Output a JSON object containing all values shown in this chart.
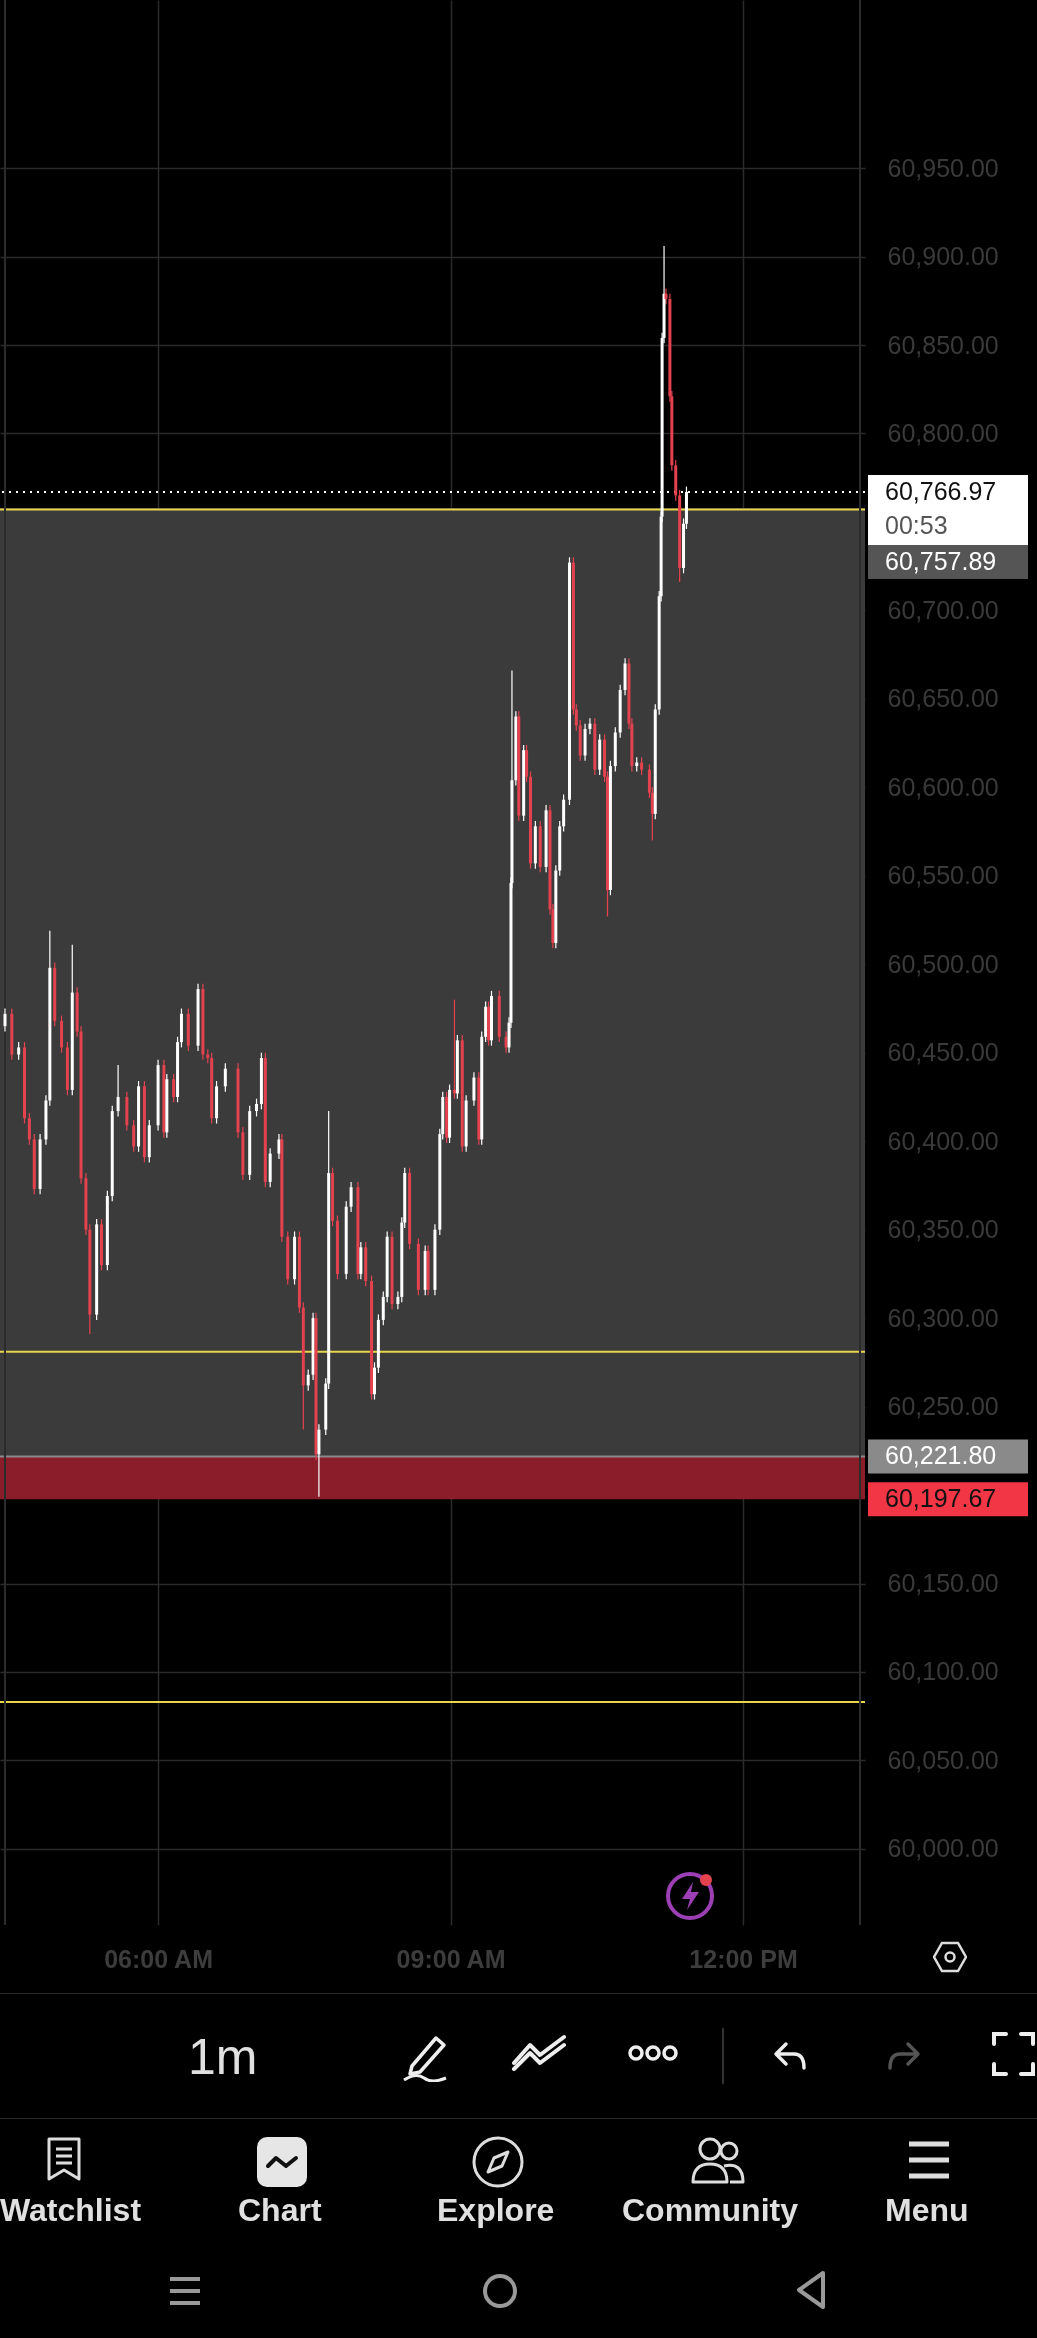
{
  "chart_data": {
    "type": "candlestick",
    "x": [
      4.43,
      4.5,
      4.57,
      4.63,
      4.68,
      4.73,
      4.79,
      4.85,
      4.89,
      4.94,
      5.01,
      5.07,
      5.12,
      5.17,
      5.21,
      5.26,
      5.3,
      5.37,
      5.42,
      5.48,
      5.53,
      5.59,
      5.68,
      5.75,
      5.8,
      5.86,
      5.91,
      6.0,
      6.06,
      6.09,
      6.16,
      6.2,
      6.24,
      6.31,
      6.41,
      6.46,
      6.51,
      6.55,
      6.6,
      6.69,
      6.82,
      6.87,
      6.94,
      7.01,
      7.06,
      7.1,
      7.15,
      7.24,
      7.27,
      7.33,
      7.4,
      7.45,
      7.49,
      7.54,
      7.59,
      7.62,
      7.65,
      7.72,
      7.75,
      7.79,
      7.84,
      7.93,
      7.98,
      8.05,
      8.08,
      8.13,
      8.19,
      8.22,
      8.26,
      8.31,
      8.35,
      8.4,
      8.46,
      8.5,
      8.53,
      8.58,
      8.67,
      8.74,
      8.77,
      8.84,
      8.89,
      8.92,
      8.96,
      8.99,
      9.04,
      9.07,
      9.12,
      9.16,
      9.24,
      9.29,
      9.32,
      9.36,
      9.39,
      9.42,
      9.5,
      9.57,
      9.6,
      9.62,
      9.63,
      9.67,
      9.7,
      9.75,
      9.78,
      9.82,
      9.87,
      9.92,
      9.98,
      10.02,
      10.05,
      10.08,
      10.12,
      10.16,
      10.22,
      10.26,
      10.29,
      10.33,
      10.38,
      10.43,
      10.48,
      10.53,
      10.58,
      10.61,
      10.64,
      10.69,
      10.74,
      10.79,
      10.83,
      10.86,
      10.91,
      10.96,
      11.04,
      11.07,
      11.1,
      11.14,
      11.16,
      11.17,
      11.19,
      11.21,
      11.25,
      11.27,
      11.31,
      11.35,
      11.39,
      11.42
    ],
    "ohlc": [
      [
        60465,
        60475,
        60462,
        60472
      ],
      [
        60472,
        60475,
        60446,
        60449
      ],
      [
        60449,
        60456,
        60446,
        60453
      ],
      [
        60453,
        60456,
        60410,
        60413
      ],
      [
        60413,
        60416,
        60398,
        60401
      ],
      [
        60401,
        60404,
        60370,
        60373
      ],
      [
        60373,
        60404,
        60370,
        60401
      ],
      [
        60401,
        60426,
        60398,
        60423
      ],
      [
        60423,
        60519,
        60420,
        60498
      ],
      [
        60498,
        60501,
        60465,
        60468
      ],
      [
        60468,
        60471,
        60450,
        60453
      ],
      [
        60453,
        60456,
        60426,
        60429
      ],
      [
        60429,
        60511,
        60426,
        60484
      ],
      [
        60484,
        60487,
        60459,
        60462
      ],
      [
        60462,
        60465,
        60376,
        60379
      ],
      [
        60379,
        60382,
        60347,
        60350
      ],
      [
        60350,
        60353,
        60291,
        60302
      ],
      [
        60302,
        60356,
        60299,
        60353
      ],
      [
        60353,
        60356,
        60327,
        60330
      ],
      [
        60330,
        60372,
        60327,
        60369
      ],
      [
        60369,
        60420,
        60366,
        60417
      ],
      [
        60417,
        60443,
        60414,
        60425
      ],
      [
        60425,
        60428,
        60406,
        60409
      ],
      [
        60409,
        60412,
        60394,
        60397
      ],
      [
        60397,
        60434,
        60394,
        60431
      ],
      [
        60431,
        60434,
        60388,
        60391
      ],
      [
        60391,
        60412,
        60388,
        60409
      ],
      [
        60409,
        60446,
        60406,
        60443
      ],
      [
        60443,
        60446,
        60402,
        60405
      ],
      [
        60405,
        60438,
        60402,
        60435
      ],
      [
        60435,
        60438,
        60422,
        60425
      ],
      [
        60425,
        60459,
        60422,
        60456
      ],
      [
        60456,
        60475,
        60453,
        60472
      ],
      [
        60472,
        60475,
        60451,
        60454
      ],
      [
        60454,
        60489,
        60451,
        60486
      ],
      [
        60486,
        60489,
        60446,
        60449
      ],
      [
        60449,
        60452,
        60444,
        60447
      ],
      [
        60447,
        60450,
        60410,
        60413
      ],
      [
        60413,
        60434,
        60410,
        60431
      ],
      [
        60431,
        60444,
        60428,
        60441
      ],
      [
        60441,
        60444,
        60402,
        60405
      ],
      [
        60405,
        60408,
        60378,
        60381
      ],
      [
        60381,
        60420,
        60378,
        60417
      ],
      [
        60417,
        60424,
        60414,
        60421
      ],
      [
        60421,
        60450,
        60418,
        60447
      ],
      [
        60447,
        60450,
        60374,
        60377
      ],
      [
        60377,
        60396,
        60374,
        60393
      ],
      [
        60393,
        60404,
        60390,
        60401
      ],
      [
        60401,
        60404,
        60343,
        60346
      ],
      [
        60346,
        60349,
        60319,
        60322
      ],
      [
        60322,
        60349,
        60319,
        60346
      ],
      [
        60346,
        60349,
        60303,
        60306
      ],
      [
        60306,
        60309,
        60237,
        60262
      ],
      [
        60262,
        60271,
        60259,
        60268
      ],
      [
        60268,
        60303,
        60265,
        60300
      ],
      [
        60300,
        60303,
        60220,
        60223
      ],
      [
        60223,
        60240,
        60199,
        60237
      ],
      [
        60237,
        60266,
        60234,
        60263
      ],
      [
        60263,
        60417,
        60260,
        60382
      ],
      [
        60382,
        60385,
        60352,
        60355
      ],
      [
        60355,
        60358,
        60322,
        60325
      ],
      [
        60325,
        60366,
        60322,
        60363
      ],
      [
        60363,
        60377,
        60360,
        60374
      ],
      [
        60374,
        60377,
        60322,
        60325
      ],
      [
        60325,
        60343,
        60322,
        60340
      ],
      [
        60340,
        60343,
        60318,
        60321
      ],
      [
        60321,
        60324,
        60254,
        60257
      ],
      [
        60257,
        60275,
        60254,
        60272
      ],
      [
        60272,
        60302,
        60269,
        60299
      ],
      [
        60299,
        60315,
        60296,
        60312
      ],
      [
        60312,
        60349,
        60309,
        60346
      ],
      [
        60346,
        60349,
        60305,
        60308
      ],
      [
        60308,
        60315,
        60305,
        60312
      ],
      [
        60312,
        60357,
        60309,
        60354
      ],
      [
        60354,
        60385,
        60351,
        60382
      ],
      [
        60382,
        60385,
        60339,
        60342
      ],
      [
        60342,
        60345,
        60313,
        60316
      ],
      [
        60316,
        60341,
        60313,
        60338
      ],
      [
        60338,
        60341,
        60313,
        60316
      ],
      [
        60316,
        60353,
        60313,
        60350
      ],
      [
        60350,
        60407,
        60347,
        60404
      ],
      [
        60404,
        60428,
        60401,
        60425
      ],
      [
        60425,
        60428,
        60399,
        60402
      ],
      [
        60402,
        60432,
        60399,
        60429
      ],
      [
        60429,
        60480,
        60424,
        60427
      ],
      [
        60427,
        60460,
        60424,
        60457
      ],
      [
        60457,
        60460,
        60394,
        60397
      ],
      [
        60397,
        60426,
        60394,
        60423
      ],
      [
        60423,
        60439,
        60420,
        60436
      ],
      [
        60436,
        60439,
        60398,
        60401
      ],
      [
        60401,
        60462,
        60398,
        60459
      ],
      [
        60459,
        60479,
        60456,
        60476
      ],
      [
        60476,
        60479,
        60454,
        60457
      ],
      [
        60457,
        60485,
        60454,
        60482
      ],
      [
        60482,
        60485,
        60456,
        60459
      ],
      [
        60459,
        60462,
        60450,
        60453
      ],
      [
        60453,
        60470,
        60450,
        60467
      ],
      [
        60467,
        60549,
        60464,
        60546
      ],
      [
        60546,
        60666,
        60543,
        60604
      ],
      [
        60604,
        60643,
        60601,
        60640
      ],
      [
        60640,
        60643,
        60581,
        60584
      ],
      [
        60584,
        60624,
        60581,
        60621
      ],
      [
        60621,
        60624,
        60603,
        60606
      ],
      [
        60606,
        60609,
        60554,
        60557
      ],
      [
        60557,
        60581,
        60554,
        60578
      ],
      [
        60578,
        60581,
        60552,
        60555
      ],
      [
        60555,
        60590,
        60552,
        60587
      ],
      [
        60587,
        60590,
        60528,
        60531
      ],
      [
        60531,
        60534,
        60509,
        60512
      ],
      [
        60512,
        60556,
        60509,
        60553
      ],
      [
        60553,
        60581,
        60550,
        60578
      ],
      [
        60578,
        60596,
        60575,
        60593
      ],
      [
        60593,
        60730,
        60590,
        60727
      ],
      [
        60727,
        60730,
        60641,
        60644
      ],
      [
        60644,
        60647,
        60632,
        60635
      ],
      [
        60635,
        60638,
        60615,
        60618
      ],
      [
        60618,
        60636,
        60615,
        60633
      ],
      [
        60633,
        60639,
        60630,
        60636
      ],
      [
        60636,
        60639,
        60607,
        60610
      ],
      [
        60610,
        60630,
        60607,
        60627
      ],
      [
        60627,
        60630,
        60603,
        60606
      ],
      [
        60606,
        60609,
        60527,
        60542
      ],
      [
        60542,
        60615,
        60539,
        60612
      ],
      [
        60612,
        60634,
        60609,
        60631
      ],
      [
        60631,
        60658,
        60628,
        60655
      ],
      [
        60655,
        60673,
        60652,
        60670
      ],
      [
        60670,
        60673,
        60633,
        60636
      ],
      [
        60636,
        60639,
        60609,
        60612
      ],
      [
        60612,
        60617,
        60609,
        60614
      ],
      [
        60614,
        60617,
        60607,
        60610
      ],
      [
        60610,
        60613,
        60594,
        60597
      ],
      [
        60597,
        60600,
        60570,
        60585
      ],
      [
        60585,
        60647,
        60582,
        60644
      ],
      [
        60644,
        60711,
        60641,
        60708
      ],
      [
        60708,
        60756,
        60705,
        60753
      ],
      [
        60753,
        60857,
        60750,
        60854
      ],
      [
        60854,
        60906,
        60851,
        60879
      ],
      [
        60879,
        60882,
        60873,
        60876
      ],
      [
        60876,
        60879,
        60818,
        60821
      ],
      [
        60821,
        60824,
        60779,
        60782
      ],
      [
        60782,
        60785,
        60762,
        60765
      ],
      [
        60765,
        60768,
        60716,
        60724
      ],
      [
        60724,
        60752,
        60721,
        60749
      ],
      [
        60749,
        60770,
        60746,
        60767
      ]
    ],
    "colors": [
      "#ffffff",
      "#e5424f",
      "#ffffff",
      "#e5424f",
      "#e5424f",
      "#e5424f",
      "#ffffff",
      "#ffffff",
      "#ffffff",
      "#e5424f",
      "#e5424f",
      "#e5424f",
      "#ffffff",
      "#e5424f",
      "#e5424f",
      "#e5424f",
      "#e5424f",
      "#ffffff",
      "#e5424f",
      "#ffffff",
      "#ffffff",
      "#ffffff",
      "#e5424f",
      "#e5424f",
      "#ffffff",
      "#e5424f",
      "#ffffff",
      "#ffffff",
      "#e5424f",
      "#ffffff",
      "#e5424f",
      "#ffffff",
      "#ffffff",
      "#e5424f",
      "#ffffff",
      "#e5424f",
      "#e5424f",
      "#e5424f",
      "#ffffff",
      "#ffffff",
      "#e5424f",
      "#e5424f",
      "#ffffff",
      "#ffffff",
      "#ffffff",
      "#e5424f",
      "#ffffff",
      "#ffffff",
      "#e5424f",
      "#e5424f",
      "#ffffff",
      "#e5424f",
      "#e5424f",
      "#ffffff",
      "#ffffff",
      "#e5424f",
      "#ffffff",
      "#ffffff",
      "#ffffff",
      "#e5424f",
      "#e5424f",
      "#ffffff",
      "#ffffff",
      "#e5424f",
      "#ffffff",
      "#e5424f",
      "#e5424f",
      "#ffffff",
      "#ffffff",
      "#ffffff",
      "#ffffff",
      "#e5424f",
      "#ffffff",
      "#ffffff",
      "#ffffff",
      "#e5424f",
      "#e5424f",
      "#ffffff",
      "#e5424f",
      "#ffffff",
      "#ffffff",
      "#ffffff",
      "#e5424f",
      "#ffffff",
      "#e5424f",
      "#ffffff",
      "#e5424f",
      "#ffffff",
      "#ffffff",
      "#e5424f",
      "#ffffff",
      "#ffffff",
      "#e5424f",
      "#ffffff",
      "#e5424f",
      "#e5424f",
      "#ffffff",
      "#ffffff",
      "#ffffff",
      "#ffffff",
      "#e5424f",
      "#ffffff",
      "#e5424f",
      "#e5424f",
      "#ffffff",
      "#e5424f",
      "#ffffff",
      "#e5424f",
      "#e5424f",
      "#ffffff",
      "#ffffff",
      "#ffffff",
      "#ffffff",
      "#e5424f",
      "#e5424f",
      "#e5424f",
      "#ffffff",
      "#ffffff",
      "#e5424f",
      "#ffffff",
      "#e5424f",
      "#e5424f",
      "#ffffff",
      "#ffffff",
      "#ffffff",
      "#ffffff",
      "#e5424f",
      "#e5424f",
      "#ffffff",
      "#e5424f",
      "#e5424f",
      "#e5424f",
      "#ffffff",
      "#ffffff",
      "#ffffff",
      "#ffffff",
      "#ffffff",
      "#e5424f",
      "#e5424f",
      "#e5424f",
      "#e5424f",
      "#e5424f",
      "#ffffff",
      "#ffffff"
    ],
    "xlim": [
      4.43,
      13.2
    ],
    "xticks": [
      {
        "value": 6,
        "label": "06:00 AM"
      },
      {
        "value": 9,
        "label": "09:00 AM"
      },
      {
        "value": 12,
        "label": "12:00 PM"
      }
    ],
    "ylim": [
      59957,
      61045
    ],
    "yticks": [
      {
        "value": 60000,
        "label": "60,000.00"
      },
      {
        "value": 60050,
        "label": "60,050.00"
      },
      {
        "value": 60100,
        "label": "60,100.00"
      },
      {
        "value": 60150,
        "label": "60,150.00"
      },
      {
        "value": 60250,
        "label": "60,250.00"
      },
      {
        "value": 60300,
        "label": "60,300.00"
      },
      {
        "value": 60350,
        "label": "60,350.00"
      },
      {
        "value": 60400,
        "label": "60,400.00"
      },
      {
        "value": 60450,
        "label": "60,450.00"
      },
      {
        "value": 60500,
        "label": "60,500.00"
      },
      {
        "value": 60550,
        "label": "60,550.00"
      },
      {
        "value": 60600,
        "label": "60,600.00"
      },
      {
        "value": 60650,
        "label": "60,650.00"
      },
      {
        "value": 60700,
        "label": "60,700.00"
      },
      {
        "value": 60800,
        "label": "60,800.00"
      },
      {
        "value": 60850,
        "label": "60,850.00"
      },
      {
        "value": 60900,
        "label": "60,900.00"
      },
      {
        "value": 60950,
        "label": "60,950.00"
      }
    ],
    "grid": true,
    "bands": [
      {
        "axis": "y",
        "from": 60221.8,
        "to": 60757.89,
        "label": "60,757.89",
        "color": "#3b3b3b"
      },
      {
        "axis": "y",
        "from": 60221.8,
        "to": 60197.67,
        "label": "60,197.67",
        "color": "#8b1d2a"
      }
    ],
    "ref_lines": [
      {
        "axis": "y",
        "value": 60766.97,
        "label": "60,766.97",
        "color": "#ffffff",
        "line_style": "dotted"
      },
      {
        "axis": "y",
        "value": 60221.8,
        "label": "60,221.80",
        "color": "#8a8a8a"
      },
      {
        "axis": "y",
        "value": 60757,
        "label": null,
        "color": "#e8d44d"
      },
      {
        "axis": "y",
        "value": 60281,
        "label": null,
        "color": "#e8d44d"
      },
      {
        "axis": "y",
        "value": 60083,
        "label": null,
        "color": "#e8d44d"
      }
    ],
    "annotations": [
      "00:53",
      "1m",
      "Watchlist",
      "Chart",
      "Explore",
      "Community",
      "Menu"
    ]
  }
}
